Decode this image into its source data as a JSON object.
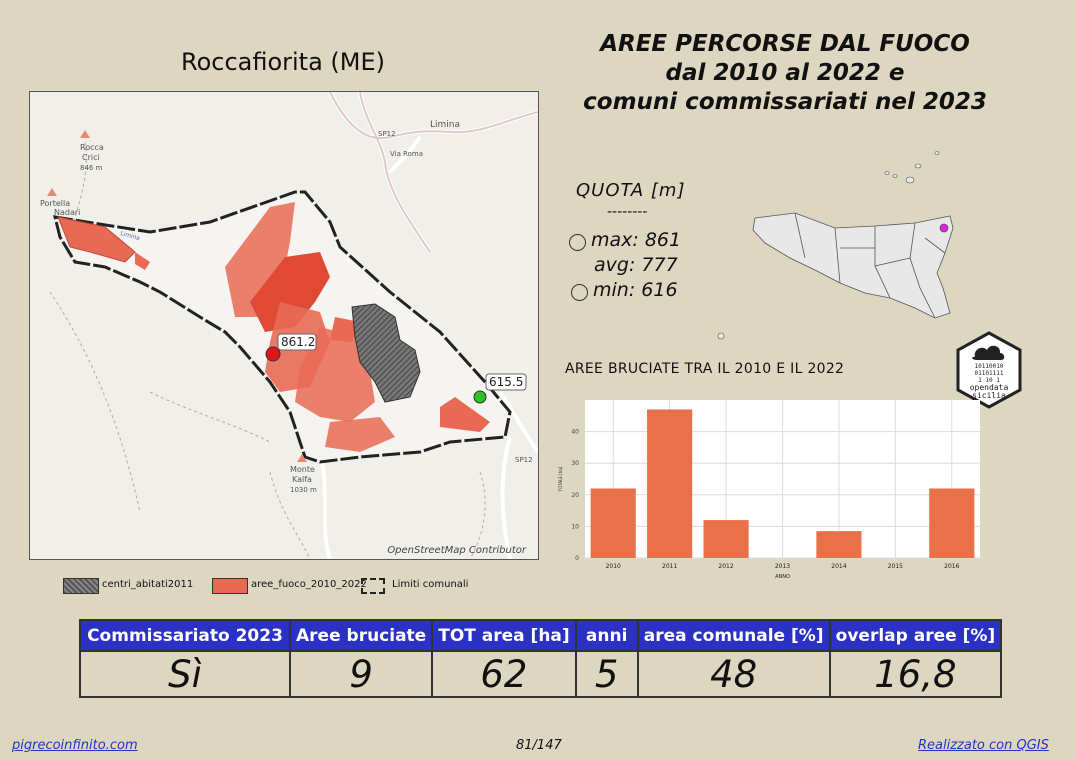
{
  "map": {
    "title": "Roccafiorita (ME)",
    "attribution": "OpenStreetMap Contributor",
    "labels": {
      "rocca_crici": "Rocca",
      "rocca_crici2": "Crici",
      "rocca_crici3": "846 m",
      "portella": "Portella",
      "portella2": "Nadari",
      "limina": "Limina",
      "via_roma": "Via Roma",
      "sp12_top": "SP12",
      "sp12_bottom": "SP12",
      "monte_kalfa": "Monte",
      "monte_kalfa2": "Kalfa",
      "monte_kalfa3": "1030 m",
      "stream": "Limina",
      "max_label": "861.2",
      "min_label": "615.5"
    }
  },
  "main_title": {
    "line1": "AREE PERCORSE DAL FUOCO",
    "line2": "dal 2010 al 2022 e",
    "line3": "comuni commissariati nel 2023"
  },
  "legend": {
    "centri": "centri_abitati2011",
    "aree": "aree_fuoco_2010_2022",
    "limiti": "Limiti comunali"
  },
  "quota": {
    "title": "QUOTA [m]",
    "separator": "--------",
    "max": "max: 861",
    "avg": "avg: 777",
    "min": "min: 616",
    "colors": {
      "max": "#e0151b",
      "min": "#2fc024"
    }
  },
  "logo": {
    "bits1": "10110010",
    "bits2": "01101111",
    "bits3": "1   10 1",
    "name1": "opendata",
    "name2": "sicilia"
  },
  "chart_title": "AREE BRUCIATE TRA IL 2010 E IL 2022",
  "chart_data": {
    "type": "bar",
    "categories": [
      "2010",
      "2011",
      "2012",
      "2013",
      "2014",
      "2015",
      "2016"
    ],
    "values": [
      22,
      47,
      12,
      0,
      8.5,
      0,
      22
    ],
    "xlabel": "ANNO",
    "ylabel": "TOTALE [ha]",
    "ylim": [
      0,
      50
    ],
    "yticks": [
      "0",
      "10",
      "20",
      "30",
      "40"
    ],
    "grid": true,
    "color": "#e8714a"
  },
  "table": {
    "headers": [
      "Commissariato 2023",
      "Aree bruciate",
      "TOT area [ha]",
      "anni",
      "area comunale [%]",
      "overlap aree [%]"
    ],
    "values": [
      "Sì",
      "9",
      "62",
      "5",
      "48",
      "16,8"
    ]
  },
  "footer": {
    "left": "pigrecoinfinito.com",
    "center": "81/147",
    "right": "Realizzato con QGIS"
  }
}
